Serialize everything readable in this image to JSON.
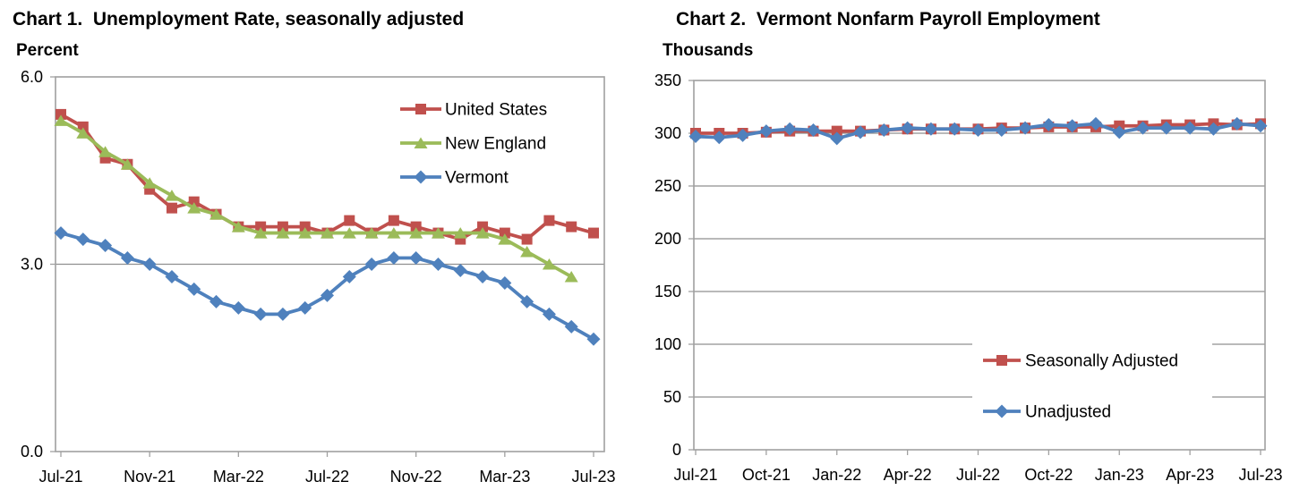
{
  "page_background": "#ffffff",
  "style": {
    "frame_color": "#a0a0a0",
    "grid_color": "#8f8f8f",
    "text_color": "#000000"
  },
  "chart_data": [
    {
      "id": "chart-1",
      "type": "line",
      "title": "Chart 1.  Unemployment Rate, seasonally adjusted",
      "unit_label": "Percent",
      "xlabel": "",
      "ylabel": "Percent",
      "ylim": [
        0,
        6
      ],
      "grid": "single-line-at-3.0",
      "legend_position": "inside-top-right",
      "categories": [
        "Jul-21",
        "Aug-21",
        "Sep-21",
        "Oct-21",
        "Nov-21",
        "Dec-21",
        "Jan-22",
        "Feb-22",
        "Mar-22",
        "Apr-22",
        "May-22",
        "Jun-22",
        "Jul-22",
        "Aug-22",
        "Sep-22",
        "Oct-22",
        "Nov-22",
        "Dec-22",
        "Jan-23",
        "Feb-23",
        "Mar-23",
        "Apr-23",
        "May-23",
        "Jun-23",
        "Jul-23"
      ],
      "x_ticks": [
        {
          "index": 0,
          "label": "Jul-21"
        },
        {
          "index": 4,
          "label": "Nov-21"
        },
        {
          "index": 8,
          "label": "Mar-22"
        },
        {
          "index": 12,
          "label": "Jul-22"
        },
        {
          "index": 16,
          "label": "Nov-22"
        },
        {
          "index": 20,
          "label": "Mar-23"
        },
        {
          "index": 24,
          "label": "Jul-23"
        }
      ],
      "y_ticks": [
        {
          "value": 0,
          "label": "0.0"
        },
        {
          "value": 3,
          "label": "3.0"
        },
        {
          "value": 6,
          "label": "6.0"
        }
      ],
      "gridlines": [
        3
      ],
      "series": [
        {
          "name": "United States",
          "color": "#C0504D",
          "marker": "square",
          "values": [
            5.4,
            5.2,
            4.7,
            4.6,
            4.2,
            3.9,
            4.0,
            3.8,
            3.6,
            3.6,
            3.6,
            3.6,
            3.5,
            3.7,
            3.5,
            3.7,
            3.6,
            3.5,
            3.4,
            3.6,
            3.5,
            3.4,
            3.7,
            3.6,
            3.5
          ]
        },
        {
          "name": "New England",
          "color": "#9BBB59",
          "marker": "triangle",
          "values": [
            5.3,
            5.1,
            4.8,
            4.6,
            4.3,
            4.1,
            3.9,
            3.8,
            3.6,
            3.5,
            3.5,
            3.5,
            3.5,
            3.5,
            3.5,
            3.5,
            3.5,
            3.5,
            3.5,
            3.5,
            3.4,
            3.2,
            3.0,
            2.8,
            null
          ]
        },
        {
          "name": "Vermont",
          "color": "#4F81BD",
          "marker": "diamond",
          "values": [
            3.5,
            3.4,
            3.3,
            3.1,
            3.0,
            2.8,
            2.6,
            2.4,
            2.3,
            2.2,
            2.2,
            2.3,
            2.5,
            2.8,
            3.0,
            3.1,
            3.1,
            3.0,
            2.9,
            2.8,
            2.7,
            2.4,
            2.2,
            2.0,
            1.8
          ]
        }
      ]
    },
    {
      "id": "chart-2",
      "type": "line",
      "title": "Chart 2.  Vermont Nonfarm Payroll Employment",
      "unit_label": "Thousands",
      "xlabel": "",
      "ylabel": "Thousands",
      "ylim": [
        0,
        350
      ],
      "grid": "horizontal-every-50",
      "legend_position": "inside-bottom-right",
      "categories": [
        "Jul-21",
        "Aug-21",
        "Sep-21",
        "Oct-21",
        "Nov-21",
        "Dec-21",
        "Jan-22",
        "Feb-22",
        "Mar-22",
        "Apr-22",
        "May-22",
        "Jun-22",
        "Jul-22",
        "Aug-22",
        "Sep-22",
        "Oct-22",
        "Nov-22",
        "Dec-22",
        "Jan-23",
        "Feb-23",
        "Mar-23",
        "Apr-23",
        "May-23",
        "Jun-23",
        "Jul-23"
      ],
      "x_ticks": [
        {
          "index": 0,
          "label": "Jul-21"
        },
        {
          "index": 3,
          "label": "Oct-21"
        },
        {
          "index": 6,
          "label": "Jan-22"
        },
        {
          "index": 9,
          "label": "Apr-22"
        },
        {
          "index": 12,
          "label": "Jul-22"
        },
        {
          "index": 15,
          "label": "Oct-22"
        },
        {
          "index": 18,
          "label": "Jan-23"
        },
        {
          "index": 21,
          "label": "Apr-23"
        },
        {
          "index": 24,
          "label": "Jul-23"
        }
      ],
      "y_ticks": [
        {
          "value": 0,
          "label": "0"
        },
        {
          "value": 50,
          "label": "50"
        },
        {
          "value": 100,
          "label": "100"
        },
        {
          "value": 150,
          "label": "150"
        },
        {
          "value": 200,
          "label": "200"
        },
        {
          "value": 250,
          "label": "250"
        },
        {
          "value": 300,
          "label": "300"
        },
        {
          "value": 350,
          "label": "350"
        }
      ],
      "gridlines": [
        50,
        100,
        150,
        200,
        250,
        300
      ],
      "series": [
        {
          "name": "Seasonally Adjusted",
          "color": "#C0504D",
          "marker": "square",
          "values": [
            300,
            300,
            300,
            301,
            302,
            302,
            302,
            302,
            303,
            304,
            304,
            304,
            304,
            305,
            305,
            306,
            306,
            306,
            307,
            307,
            308,
            308,
            309,
            308,
            309
          ]
        },
        {
          "name": "Unadjusted",
          "color": "#4F81BD",
          "marker": "diamond",
          "values": [
            297,
            296,
            298,
            302,
            304,
            303,
            295,
            301,
            303,
            305,
            304,
            304,
            303,
            303,
            305,
            308,
            307,
            309,
            301,
            305,
            305,
            305,
            304,
            309,
            307
          ]
        }
      ]
    }
  ]
}
